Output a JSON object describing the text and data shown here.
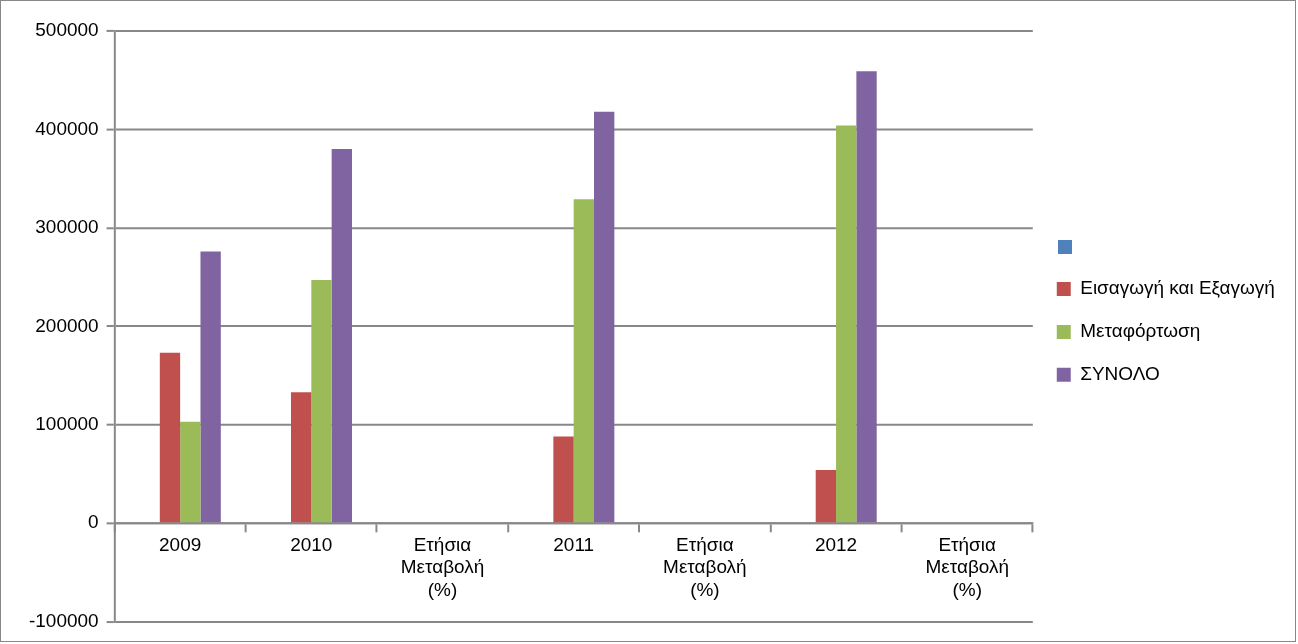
{
  "chart_data": {
    "type": "bar",
    "categories": [
      "2009",
      "2010",
      "Ετήσια Μεταβολή (%)",
      "2011",
      "Ετήσια Μεταβολή (%)",
      "2012",
      "Ετήσια Μεταβολή (%)"
    ],
    "series": [
      {
        "color": "#4f81bd",
        "values": [
          null,
          null,
          null,
          null,
          null,
          null,
          null
        ]
      },
      {
        "name": "Εισαγωγή και Εξαγωγή",
        "color": "#c0504d",
        "values": [
          173000,
          133000,
          null,
          88000,
          null,
          54000,
          null
        ]
      },
      {
        "name": "Μεταφόρτωση",
        "color": "#9bbb59",
        "values": [
          103000,
          247000,
          null,
          329000,
          null,
          404000,
          null
        ]
      },
      {
        "name": "ΣΥΝΟΛΟ",
        "color": "#8064a2",
        "values": [
          276000,
          380000,
          null,
          418000,
          null,
          459000,
          null
        ]
      }
    ],
    "ylim": [
      -100000,
      500000
    ],
    "yticks": [
      -100000,
      0,
      100000,
      200000,
      300000,
      400000,
      500000
    ],
    "grid": "y",
    "legend": "right"
  }
}
